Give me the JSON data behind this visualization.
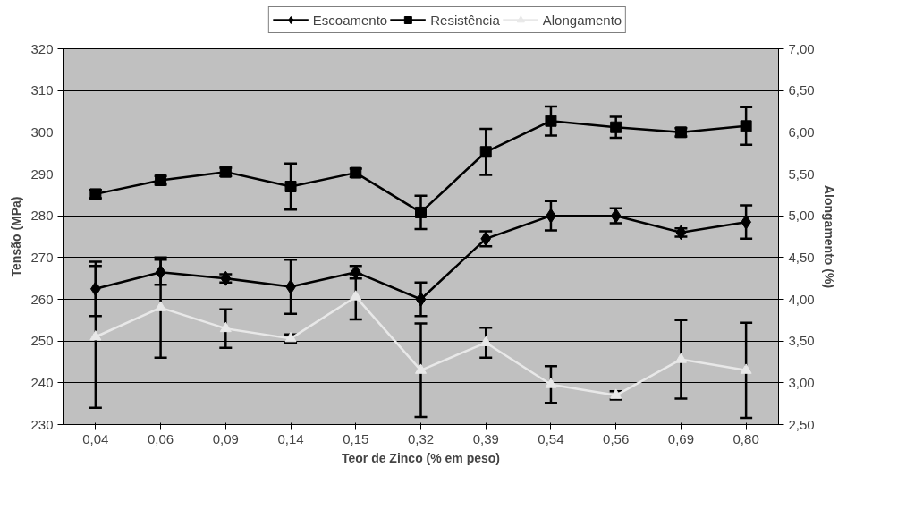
{
  "chart_data": {
    "type": "line",
    "xlabel": "Teor de Zinco (% em peso)",
    "ylabel": "Tensão (MPa)",
    "y2label": "Alongamento (%)",
    "categories": [
      "0,04",
      "0,06",
      "0,09",
      "0,14",
      "0,15",
      "0,32",
      "0,39",
      "0,54",
      "0,56",
      "0,69",
      "0,80"
    ],
    "ylim": [
      230,
      320
    ],
    "yticks": [
      230,
      240,
      250,
      260,
      270,
      280,
      290,
      300,
      310,
      320
    ],
    "y2lim": [
      2.5,
      7.0
    ],
    "y2ticks": [
      {
        "value": 2.5,
        "label": "2,50"
      },
      {
        "value": 3.0,
        "label": "3,00"
      },
      {
        "value": 3.5,
        "label": "3,50"
      },
      {
        "value": 4.0,
        "label": "4,00"
      },
      {
        "value": 4.5,
        "label": "4,50"
      },
      {
        "value": 5.0,
        "label": "5,00"
      },
      {
        "value": 5.5,
        "label": "5,50"
      },
      {
        "value": 6.0,
        "label": "6,00"
      },
      {
        "value": 6.5,
        "label": "6,50"
      },
      {
        "value": 7.0,
        "label": "7,00"
      }
    ],
    "grid": "y",
    "legend": "top",
    "series": [
      {
        "name": "Escoamento",
        "color": "#000000",
        "marker": "diamond",
        "values": [
          262.5,
          266.5,
          265,
          263,
          266.5,
          260,
          274.5,
          280,
          280,
          276,
          278.5
        ],
        "errors": [
          6.5,
          3,
          1,
          6.5,
          1.5,
          4,
          1.8,
          3.5,
          1.8,
          1,
          4
        ]
      },
      {
        "name": "Resistência",
        "color": "#000000",
        "marker": "square",
        "values": [
          285.2,
          288.5,
          290.5,
          287,
          290.3,
          280.8,
          295.3,
          302.7,
          301.2,
          300,
          301.5
        ],
        "errors": [
          1,
          1,
          1,
          5.5,
          1,
          4,
          5.5,
          3.5,
          2.5,
          1,
          4.5
        ]
      },
      {
        "name": "Alongamento",
        "color": "#e8e8e8",
        "marker": "triangle",
        "axis": "y2",
        "values": [
          3.55,
          3.9,
          3.65,
          3.53,
          4.03,
          3.15,
          3.48,
          2.98,
          2.85,
          3.28,
          3.15
        ],
        "errors": [
          0.85,
          0.6,
          0.23,
          0.05,
          0.27,
          0.56,
          0.18,
          0.22,
          0.05,
          0.47,
          0.57
        ]
      }
    ]
  }
}
